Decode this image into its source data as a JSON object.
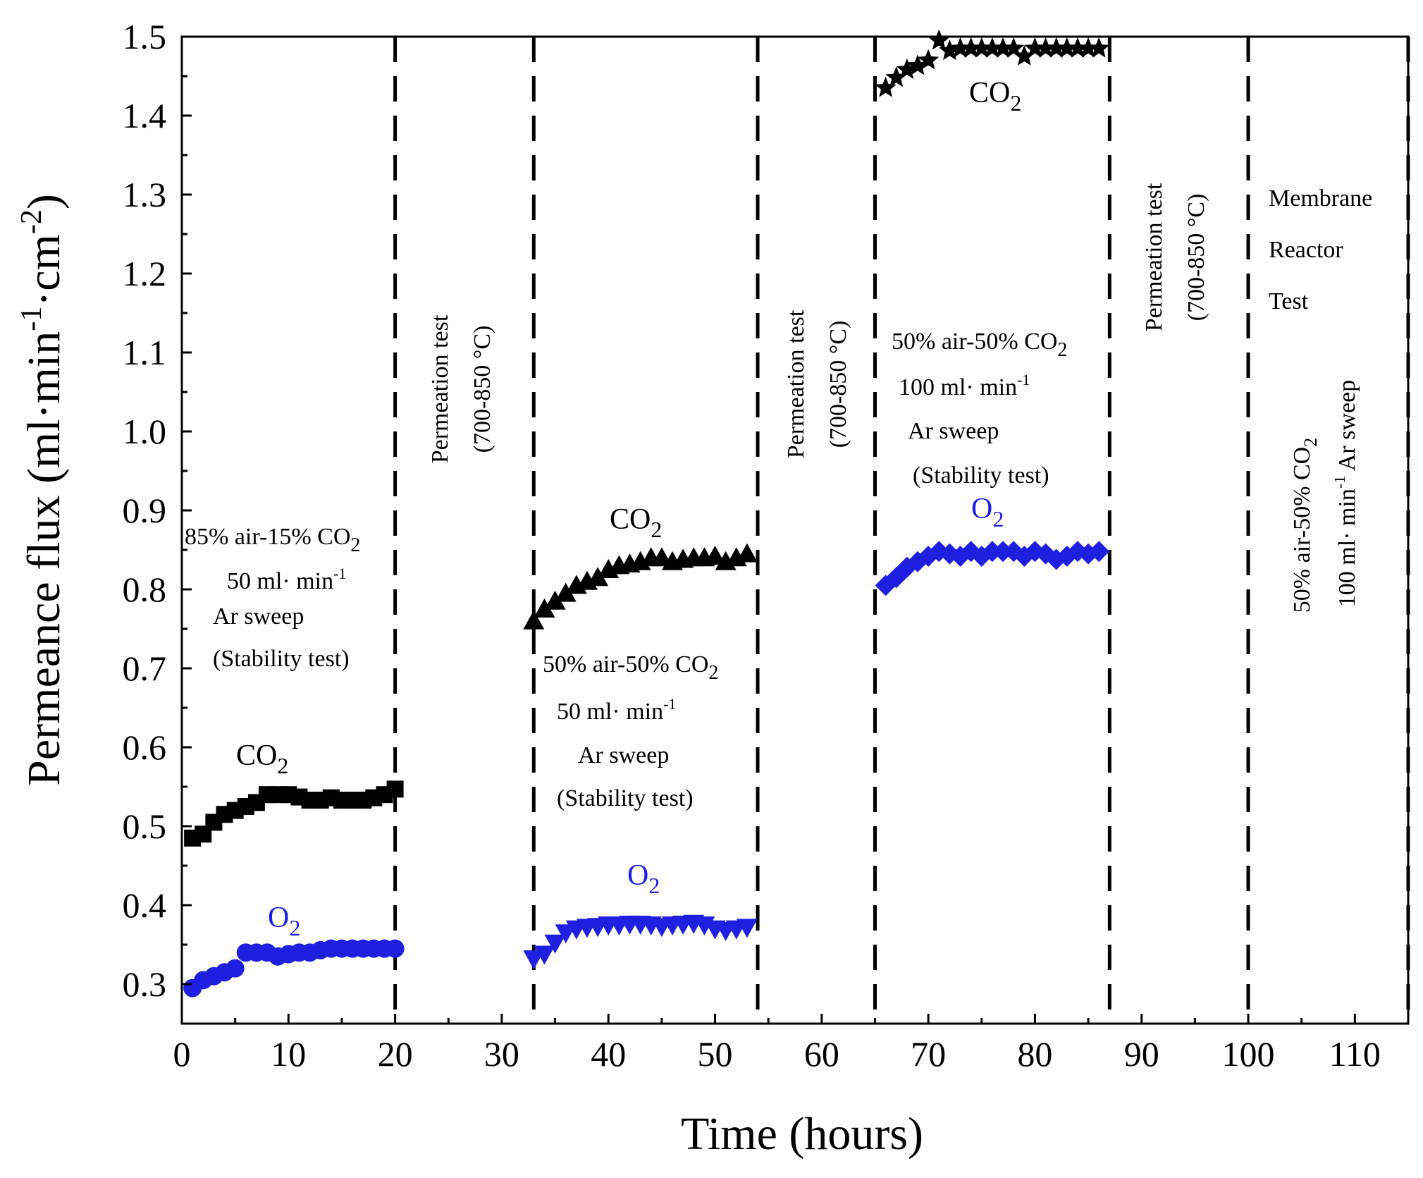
{
  "chart_data": {
    "type": "scatter",
    "title": "",
    "xlabel": "Time (hours)",
    "ylabel_parts": {
      "base": "Permeance flux (ml·min",
      "exp1": "-1",
      "mid": "·cm",
      "exp2": "-2",
      "end": ")"
    },
    "xlim": [
      0,
      115
    ],
    "ylim": [
      0.25,
      1.5
    ],
    "xticks": [
      0,
      10,
      20,
      30,
      40,
      50,
      60,
      70,
      80,
      90,
      100,
      110
    ],
    "yticks": [
      0.3,
      0.4,
      0.5,
      0.6,
      0.7,
      0.8,
      0.9,
      1.0,
      1.1,
      1.2,
      1.3,
      1.4,
      1.5
    ],
    "ytick_labels": [
      "0.3",
      "0.4",
      "0.5",
      "0.6",
      "0.7",
      "0.8",
      "0.9",
      "1.0",
      "1.1",
      "1.2",
      "1.3",
      "1.4",
      "1.5"
    ],
    "colors": {
      "co2": "#000000",
      "o2": "#1f1fe0",
      "axes": "#000000"
    },
    "dividers_x": [
      20,
      33,
      54,
      65,
      87,
      100,
      115
    ],
    "series": [
      {
        "name": "CO2 (85% air-15% CO2, 50 ml/min)",
        "marker": "square",
        "color": "#000000",
        "x": [
          1,
          2,
          3,
          4,
          5,
          6,
          7,
          8,
          9,
          10,
          11,
          12,
          13,
          14,
          15,
          16,
          17,
          18,
          19,
          20
        ],
        "y": [
          0.485,
          0.49,
          0.505,
          0.515,
          0.52,
          0.525,
          0.53,
          0.54,
          0.54,
          0.54,
          0.537,
          0.533,
          0.533,
          0.536,
          0.533,
          0.533,
          0.533,
          0.536,
          0.54,
          0.547
        ]
      },
      {
        "name": "O2 (85% air-15% CO2, 50 ml/min)",
        "marker": "circle",
        "color": "#1f1fe0",
        "x": [
          1,
          2,
          3,
          4,
          5,
          6,
          7,
          8,
          9,
          10,
          11,
          12,
          13,
          14,
          15,
          16,
          17,
          18,
          19,
          20
        ],
        "y": [
          0.295,
          0.305,
          0.31,
          0.315,
          0.32,
          0.34,
          0.34,
          0.34,
          0.335,
          0.338,
          0.34,
          0.34,
          0.343,
          0.345,
          0.345,
          0.345,
          0.345,
          0.345,
          0.345,
          0.345
        ]
      },
      {
        "name": "CO2 (50% air-50% CO2, 50 ml/min)",
        "marker": "triangle-up",
        "color": "#000000",
        "x": [
          33,
          34,
          35,
          36,
          37,
          38,
          39,
          40,
          41,
          42,
          43,
          44,
          45,
          46,
          47,
          48,
          49,
          50,
          51,
          52,
          53
        ],
        "y": [
          0.76,
          0.775,
          0.785,
          0.795,
          0.805,
          0.81,
          0.815,
          0.825,
          0.83,
          0.832,
          0.835,
          0.84,
          0.84,
          0.835,
          0.838,
          0.84,
          0.84,
          0.842,
          0.835,
          0.84,
          0.845
        ]
      },
      {
        "name": "O2 (50% air-50% CO2, 50 ml/min)",
        "marker": "triangle-down",
        "color": "#1f1fe0",
        "x": [
          33,
          34,
          35,
          36,
          37,
          38,
          39,
          40,
          41,
          42,
          43,
          44,
          45,
          46,
          47,
          48,
          49,
          50,
          51,
          52,
          53
        ],
        "y": [
          0.332,
          0.338,
          0.352,
          0.365,
          0.37,
          0.372,
          0.373,
          0.375,
          0.375,
          0.376,
          0.376,
          0.375,
          0.373,
          0.375,
          0.376,
          0.377,
          0.375,
          0.37,
          0.368,
          0.37,
          0.372
        ]
      },
      {
        "name": "CO2 (50% air-50% CO2, 100 ml/min)",
        "marker": "star",
        "color": "#000000",
        "x": [
          66,
          67,
          68,
          69,
          70,
          71,
          72,
          73,
          74,
          75,
          76,
          77,
          78,
          79,
          80,
          81,
          82,
          83,
          84,
          85,
          86
        ],
        "y": [
          1.435,
          1.448,
          1.458,
          1.463,
          1.47,
          1.495,
          1.482,
          1.485,
          1.485,
          1.485,
          1.485,
          1.485,
          1.485,
          1.475,
          1.485,
          1.485,
          1.485,
          1.485,
          1.485,
          1.485,
          1.485
        ]
      },
      {
        "name": "O2 (50% air-50% CO2, 100 ml/min)",
        "marker": "diamond",
        "color": "#1f1fe0",
        "x": [
          66,
          67,
          68,
          69,
          70,
          71,
          72,
          73,
          74,
          75,
          76,
          77,
          78,
          79,
          80,
          81,
          82,
          83,
          84,
          85,
          86
        ],
        "y": [
          0.805,
          0.815,
          0.828,
          0.835,
          0.842,
          0.848,
          0.845,
          0.842,
          0.848,
          0.842,
          0.848,
          0.848,
          0.848,
          0.842,
          0.848,
          0.845,
          0.838,
          0.842,
          0.848,
          0.845,
          0.848
        ]
      }
    ],
    "annotations": {
      "seg1": {
        "co2": "CO",
        "o2": "O",
        "sub": "2",
        "lines": [
          "85% air-15% CO",
          "50 ml· min",
          "Ar  sweep",
          "(Stability test)"
        ],
        "exp": "-1"
      },
      "perm1": {
        "line1": "Permeation test",
        "line2": "(700-850 °C)"
      },
      "seg2": {
        "co2": "CO",
        "o2": "O",
        "sub": "2",
        "lines": [
          "50% air-50% CO",
          "50 ml·  min",
          "Ar sweep",
          "(Stability test)"
        ],
        "exp": "-1"
      },
      "perm2": {
        "line1": "Permeation test",
        "line2": "(700-850 °C)"
      },
      "seg3": {
        "co2": "CO",
        "o2": "O",
        "sub": "2",
        "lines": [
          "50% air-50% CO",
          "100 ml·  min",
          "Ar sweep",
          "(Stability test)"
        ],
        "exp": "-1"
      },
      "perm3": {
        "line1": "Permeation test",
        "line2": "(700-850 °C)"
      },
      "reactor": {
        "lines": [
          "Membrane",
          "Reactor",
          "Test"
        ],
        "rot1": "50% air-50% CO",
        "rot1_sub": "2",
        "rot2a": "100 ml· min",
        "rot2_exp": "-1",
        "rot2b": " Ar sweep"
      }
    }
  }
}
